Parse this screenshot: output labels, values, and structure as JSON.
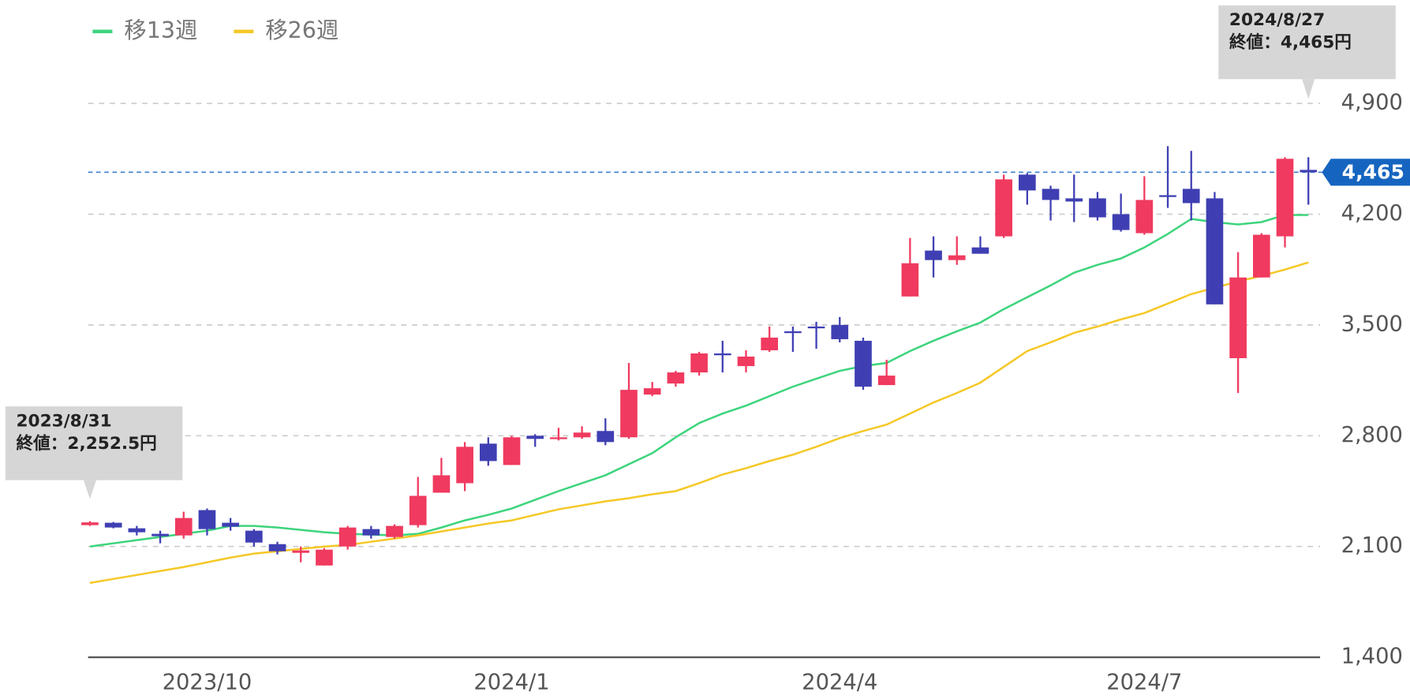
{
  "chart_data": {
    "type": "candlestick",
    "categories": [
      null,
      null,
      null,
      null,
      null,
      "2023/10",
      null,
      null,
      null,
      null,
      null,
      null,
      null,
      null,
      null,
      null,
      null,
      null,
      "2024/1",
      null,
      null,
      null,
      null,
      null,
      null,
      null,
      null,
      null,
      null,
      null,
      null,
      null,
      "2024/4",
      null,
      null,
      null,
      null,
      null,
      null,
      null,
      null,
      null,
      null,
      null,
      null,
      "2024/7",
      null,
      null,
      null,
      null,
      null,
      null,
      null
    ],
    "open": [
      2235,
      2250,
      2215,
      2180,
      2170,
      2330,
      2250,
      2200,
      2115,
      2060,
      1980,
      2100,
      2210,
      2160,
      2235,
      2440,
      2500,
      2750,
      2615,
      2800,
      2780,
      2790,
      2830,
      2790,
      3060,
      3130,
      3200,
      3320,
      3240,
      3340,
      3460,
      3490,
      3500,
      3400,
      3120,
      3680,
      3970,
      3910,
      3990,
      4060,
      4450,
      4360,
      4300,
      4300,
      4200,
      4080,
      4320,
      4360,
      4300,
      3290,
      3800,
      4060,
      4480
    ],
    "high": [
      2260,
      2255,
      2230,
      2200,
      2320,
      2340,
      2280,
      2210,
      2130,
      2100,
      2090,
      2230,
      2230,
      2240,
      2540,
      2660,
      2760,
      2790,
      2800,
      2810,
      2850,
      2860,
      2910,
      3260,
      3140,
      3210,
      3330,
      3400,
      3340,
      3490,
      3490,
      3520,
      3550,
      3420,
      3280,
      4050,
      4060,
      4060,
      4060,
      4450,
      4460,
      4380,
      4450,
      4340,
      4330,
      4440,
      4630,
      4600,
      4340,
      3960,
      4080,
      4560,
      4560
    ],
    "low": [
      2230,
      2215,
      2170,
      2120,
      2150,
      2170,
      2200,
      2100,
      2050,
      2000,
      1980,
      2080,
      2150,
      2150,
      2220,
      2440,
      2450,
      2610,
      2615,
      2730,
      2770,
      2780,
      2740,
      2780,
      3050,
      3110,
      3180,
      3200,
      3200,
      3330,
      3330,
      3350,
      3390,
      3090,
      3120,
      3680,
      3800,
      3880,
      3950,
      4050,
      4260,
      4160,
      4150,
      4160,
      4090,
      4070,
      4240,
      4160,
      3630,
      3070,
      3800,
      3990,
      4260
    ],
    "close": [
      2252.5,
      2220,
      2190,
      2165,
      2280,
      2210,
      2225,
      2125,
      2070,
      2075,
      2080,
      2220,
      2170,
      2230,
      2420,
      2550,
      2730,
      2640,
      2790,
      2780,
      2790,
      2820,
      2760,
      3090,
      3100,
      3200,
      3320,
      3310,
      3300,
      3420,
      3450,
      3480,
      3410,
      3110,
      3180,
      3890,
      3910,
      3940,
      3950,
      4420,
      4350,
      4290,
      4280,
      4180,
      4100,
      4290,
      4310,
      4270,
      3630,
      3800,
      4070,
      4550,
      4465
    ],
    "up_color": "#f03a5f",
    "down_color": "#3f3fb3",
    "series": [
      {
        "name": "移13週",
        "color": "#3dd47c",
        "values": [
          2100,
          2120,
          2140,
          2160,
          2180,
          2200,
          2230,
          2230,
          2220,
          2205,
          2190,
          2180,
          2175,
          2170,
          2180,
          2220,
          2265,
          2300,
          2340,
          2395,
          2450,
          2500,
          2550,
          2620,
          2690,
          2790,
          2880,
          2940,
          2990,
          3050,
          3110,
          3160,
          3210,
          3240,
          3260,
          3335,
          3400,
          3460,
          3515,
          3600,
          3675,
          3750,
          3830,
          3880,
          3920,
          3990,
          4075,
          4170,
          4150,
          4135,
          4150,
          4195,
          4195
        ]
      },
      {
        "name": "移26週",
        "color": "#f5c826",
        "values": [
          1870,
          1895,
          1920,
          1945,
          1970,
          2000,
          2030,
          2055,
          2070,
          2085,
          2100,
          2110,
          2130,
          2150,
          2170,
          2195,
          2220,
          2245,
          2265,
          2300,
          2335,
          2360,
          2385,
          2405,
          2430,
          2450,
          2500,
          2555,
          2595,
          2640,
          2680,
          2730,
          2785,
          2830,
          2870,
          2940,
          3010,
          3070,
          3135,
          3235,
          3335,
          3390,
          3450,
          3490,
          3535,
          3575,
          3635,
          3695,
          3735,
          3775,
          3810,
          3850,
          3895
        ]
      }
    ],
    "ylim": [
      1400,
      4900
    ],
    "yticks": [
      {
        "value": 1400,
        "label": "1,400"
      },
      {
        "value": 2100,
        "label": "2,100"
      },
      {
        "value": 2800,
        "label": "2,800"
      },
      {
        "value": 3500,
        "label": "3,500"
      },
      {
        "value": 4200,
        "label": "4,200"
      },
      {
        "value": 4900,
        "label": "4,900"
      }
    ],
    "grid": true,
    "last_price": {
      "value": 4465,
      "label": "4,465"
    },
    "annotations": [
      {
        "date": "2023/8/31",
        "text": "終値：2,252.5円"
      },
      {
        "date": "2024/8/27",
        "text": "終値：4,465円"
      }
    ]
  }
}
